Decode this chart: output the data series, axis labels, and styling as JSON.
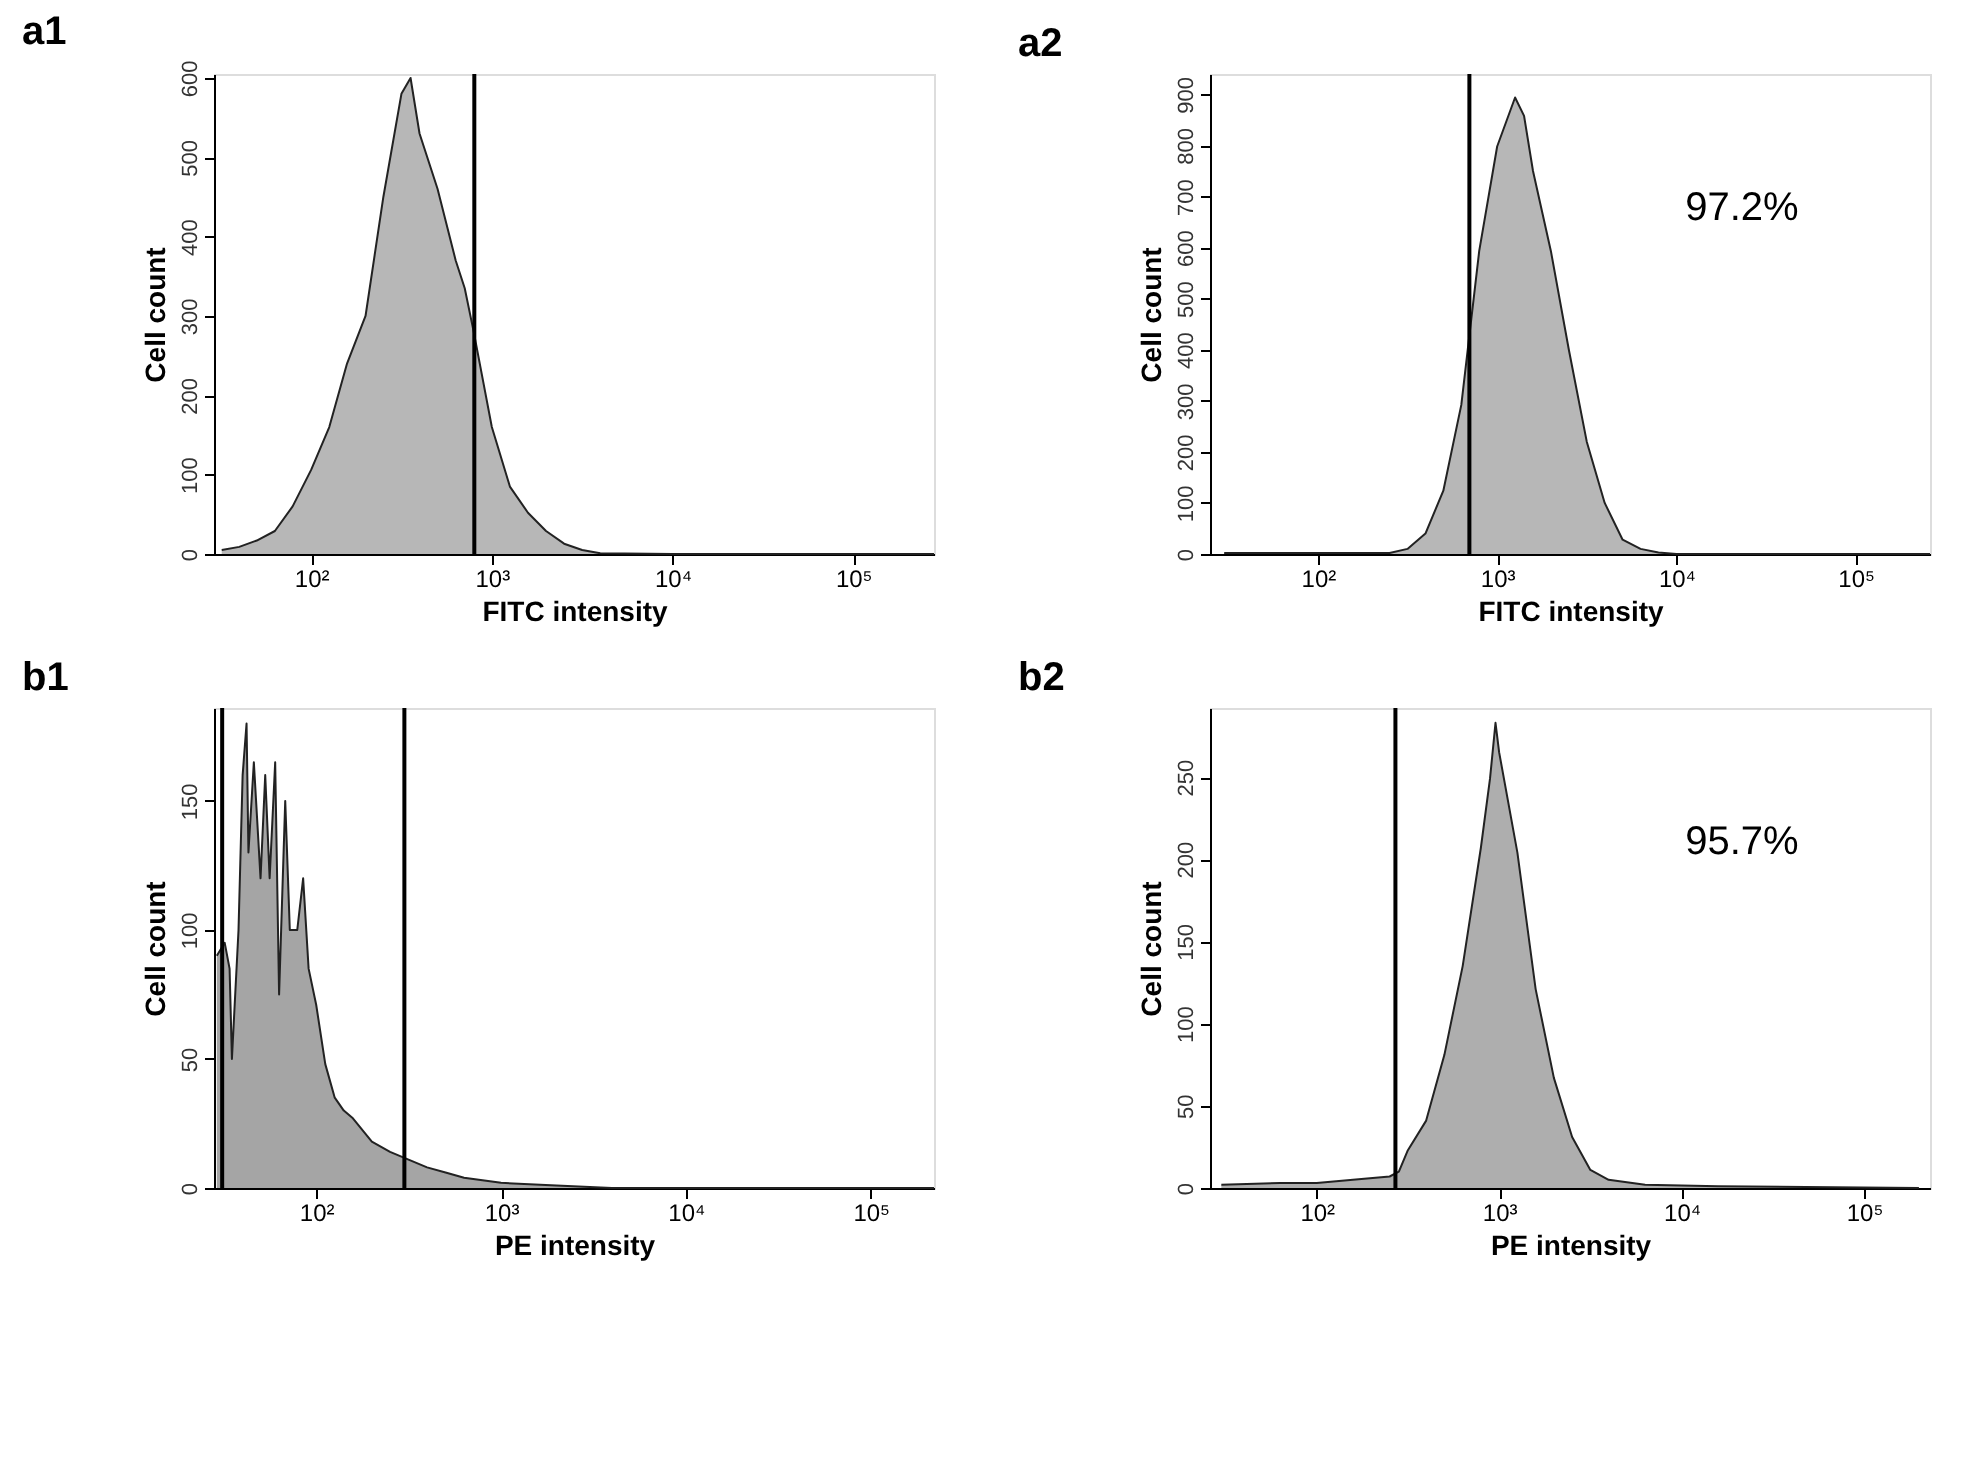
{
  "chart_data": [
    {
      "type": "area",
      "title": "a1",
      "xlabel": "FITC intensity",
      "ylabel": "Cell count",
      "log": "x",
      "grid": false,
      "xlim": [
        29,
        280000
      ],
      "xticks": [
        {
          "value": 100,
          "label": "10²"
        },
        {
          "value": 1000,
          "label": "10³"
        },
        {
          "value": 10000,
          "label": "10⁴"
        },
        {
          "value": 100000,
          "label": "10⁵"
        }
      ],
      "ylim": [
        0,
        605
      ],
      "yticks": [
        0,
        100,
        200,
        300,
        400,
        500,
        600
      ],
      "series": [
        {
          "color": "#999999",
          "x": [
            32,
            40,
            50,
            63,
            79,
            100,
            126,
            158,
            200,
            251,
            316,
            355,
            398,
            501,
            631,
            708,
            794,
            1000,
            1259,
            1585,
            1995,
            2512,
            3162,
            3981,
            10000,
            280000
          ],
          "values": [
            5,
            9,
            17,
            29,
            60,
            106,
            160,
            240,
            300,
            450,
            580,
            600,
            530,
            460,
            370,
            335,
            280,
            160,
            85,
            52,
            29,
            13,
            5,
            1,
            0,
            0
          ]
        }
      ],
      "ref_lines": [
        {
          "axis": "x",
          "value": 800,
          "color": "#000000"
        }
      ]
    },
    {
      "type": "area",
      "title": "a2",
      "xlabel": "FITC intensity",
      "ylabel": "Cell count",
      "log": "x",
      "grid": false,
      "xlim": [
        25,
        260000
      ],
      "xticks": [
        {
          "value": 100,
          "label": "10²"
        },
        {
          "value": 1000,
          "label": "10³"
        },
        {
          "value": 10000,
          "label": "10⁴"
        },
        {
          "value": 100000,
          "label": "10⁵"
        }
      ],
      "ylim": [
        0,
        940
      ],
      "yticks": [
        0,
        100,
        200,
        300,
        400,
        500,
        600,
        700,
        800,
        900
      ],
      "series": [
        {
          "color": "#999999",
          "x": [
            30,
            100,
            251,
            316,
            398,
            501,
            631,
            794,
            1000,
            1259,
            1413,
            1585,
            1995,
            2512,
            3162,
            3981,
            5012,
            6310,
            7943,
            10000,
            260000
          ],
          "values": [
            2,
            2,
            2,
            10,
            40,
            124,
            292,
            593,
            798,
            894,
            858,
            750,
            593,
            400,
            220,
            100,
            28,
            10,
            3,
            0,
            0
          ]
        }
      ],
      "ref_lines": [
        {
          "axis": "x",
          "value": 700,
          "color": "#000000"
        }
      ],
      "annotations": [
        "97.2%"
      ]
    },
    {
      "type": "area",
      "title": "b1",
      "xlabel": "PE intensity",
      "ylabel": "Cell count",
      "log": "x",
      "grid": false,
      "xlim": [
        28,
        220000
      ],
      "xticks": [
        {
          "value": 100,
          "label": "10²"
        },
        {
          "value": 1000,
          "label": "10³"
        },
        {
          "value": 10000,
          "label": "10⁴"
        },
        {
          "value": 100000,
          "label": "10⁵"
        }
      ],
      "ylim": [
        0,
        186
      ],
      "yticks": [
        0,
        50,
        100,
        150
      ],
      "series": [
        {
          "color": "#7f7f7f",
          "x": [
            29,
            32,
            34,
            35,
            38,
            40,
            42,
            43,
            46,
            50,
            53,
            56,
            60,
            63,
            68,
            72,
            79,
            85,
            91,
            100,
            112,
            126,
            141,
            158,
            200,
            251,
            316,
            398,
            501,
            631,
            794,
            1000,
            1995,
            3981,
            220000
          ],
          "values": [
            90,
            95,
            85,
            50,
            100,
            160,
            180,
            130,
            165,
            120,
            160,
            120,
            165,
            75,
            150,
            100,
            100,
            120,
            85,
            71,
            48,
            35,
            30,
            27,
            18,
            14,
            11,
            8,
            6,
            4,
            3,
            2,
            1,
            0,
            0
          ]
        }
      ],
      "ref_lines": [
        {
          "axis": "x",
          "value": 31,
          "color": "#000000"
        },
        {
          "axis": "x",
          "value": 300,
          "color": "#000000"
        }
      ]
    },
    {
      "type": "area",
      "title": "b2",
      "xlabel": "PE intensity",
      "ylabel": "Cell count",
      "log": "x",
      "grid": false,
      "xlim": [
        26,
        230000
      ],
      "xticks": [
        {
          "value": 100,
          "label": "10²"
        },
        {
          "value": 1000,
          "label": "10³"
        },
        {
          "value": 10000,
          "label": "10⁴"
        },
        {
          "value": 100000,
          "label": "10⁵"
        }
      ],
      "ylim": [
        0,
        292
      ],
      "yticks": [
        0,
        50,
        100,
        150,
        200,
        250
      ],
      "series": [
        {
          "color": "#8c8c8c",
          "x": [
            30,
            63,
            100,
            158,
            251,
            282,
            316,
            398,
            501,
            631,
            794,
            891,
            955,
            1000,
            1259,
            1585,
            1995,
            2512,
            3162,
            3981,
            6310,
            15849,
            200000
          ],
          "values": [
            2,
            3,
            3,
            5,
            7,
            10,
            23,
            41,
            81,
            135,
            207,
            249,
            283,
            265,
            204,
            121,
            67,
            31,
            11,
            5,
            2,
            1,
            0
          ]
        }
      ],
      "ref_lines": [
        {
          "axis": "x",
          "value": 270,
          "color": "#000000"
        }
      ],
      "annotations": [
        "95.7%"
      ]
    }
  ]
}
